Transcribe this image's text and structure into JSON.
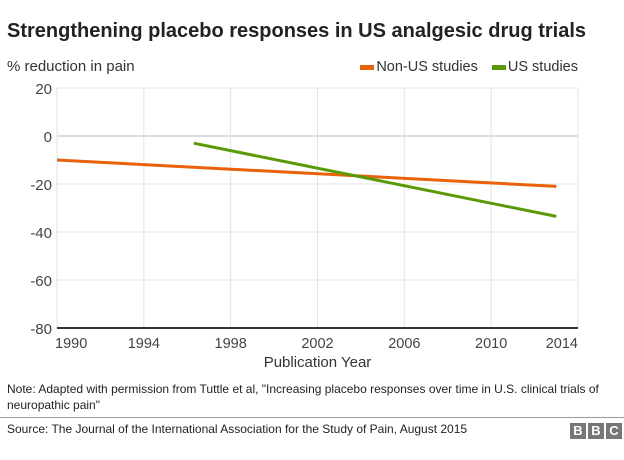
{
  "chart_data": {
    "type": "line",
    "title": "Strengthening placebo responses in US analgesic drug trials",
    "ylabel": "% reduction in pain",
    "xlabel": "Publication Year",
    "xlim": [
      1990,
      2014
    ],
    "ylim": [
      -80,
      20
    ],
    "xticks": [
      "1990",
      "1994",
      "1998",
      "2002",
      "2006",
      "2010",
      "2014"
    ],
    "yticks": [
      "20",
      "0",
      "-20",
      "-40",
      "-60",
      "-80"
    ],
    "grid": true,
    "legend": "top-right",
    "series": [
      {
        "name": "Non-US studies",
        "color": "#e8620a",
        "x": [
          1990,
          2013
        ],
        "y": [
          -10,
          -21
        ]
      },
      {
        "name": "US studies",
        "color": "#5a9a08",
        "x": [
          1996.3,
          2013
        ],
        "y": [
          -3,
          -33.5
        ]
      }
    ]
  },
  "note": "Note: Adapted with permission from Tuttle et al, \"Increasing placebo responses over time in U.S. clinical trials of neuropathic pain\"",
  "source": "Source: The Journal of the International Association for the Study of Pain, August 2015",
  "logo": [
    "B",
    "B",
    "C"
  ]
}
